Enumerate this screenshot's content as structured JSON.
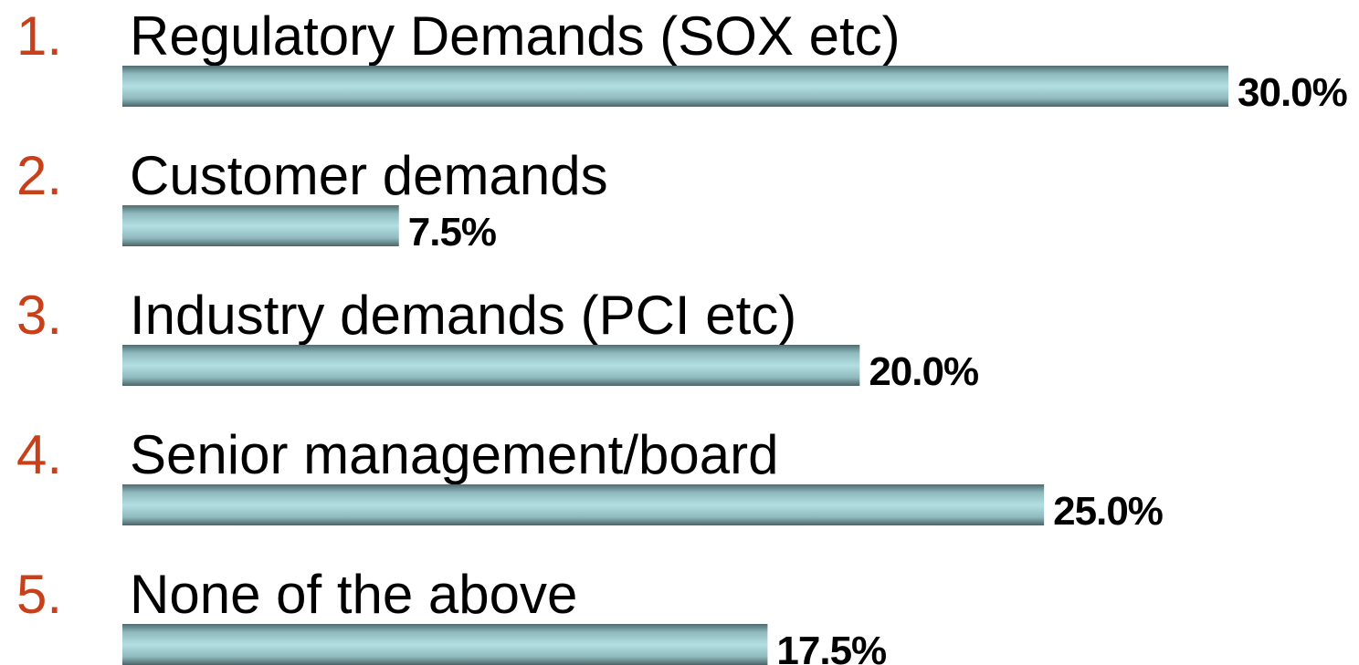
{
  "chart_data": {
    "type": "bar",
    "numbers": [
      "1.",
      "2.",
      "3.",
      "4.",
      "5."
    ],
    "categories": [
      "Regulatory Demands (SOX etc)",
      "Customer demands",
      "Industry demands (PCI etc)",
      "Senior management/board",
      "None of the above"
    ],
    "values": [
      30,
      7.5,
      20,
      25,
      17.5
    ],
    "value_labels": [
      "30.0%",
      "7.5%",
      "20.0%",
      "25.0%",
      "17.5%"
    ],
    "xlim": [
      0,
      30
    ],
    "color": "#b3dfe2",
    "number_color": "#c8401a"
  }
}
